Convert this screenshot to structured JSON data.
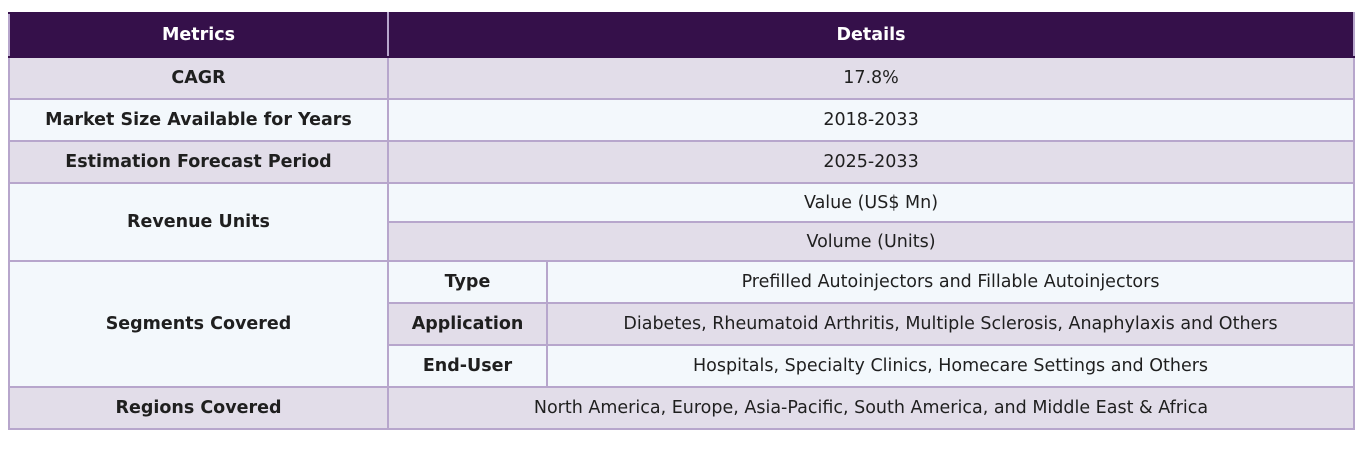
{
  "header": {
    "metrics": "Metrics",
    "details": "Details"
  },
  "rows": {
    "cagr": {
      "label": "CAGR",
      "value": "17.8%"
    },
    "market_size": {
      "label": "Market Size Available for Years",
      "value": "2018-2033"
    },
    "forecast": {
      "label": "Estimation Forecast Period",
      "value": "2025-2033"
    },
    "revenue_units": {
      "label": "Revenue Units",
      "values": [
        "Value (US$ Mn)",
        "Volume (Units)"
      ]
    },
    "segments": {
      "label": "Segments Covered",
      "items": [
        {
          "name": "Type",
          "value": "Prefilled Autoinjectors and Fillable Autoinjectors"
        },
        {
          "name": "Application",
          "value": "Diabetes, Rheumatoid Arthritis, Multiple Sclerosis, Anaphylaxis and Others"
        },
        {
          "name": "End-User",
          "value": "Hospitals, Specialty Clinics, Homecare Settings and Others"
        }
      ]
    },
    "regions": {
      "label": "Regions Covered",
      "value": "North America, Europe, Asia-Pacific, South America, and Middle East & Africa"
    }
  },
  "colors": {
    "header_bg": "#35104a",
    "shade_bg": "#e2dde9",
    "light_bg": "#f3f8fc",
    "border": "#b7a6cc"
  }
}
